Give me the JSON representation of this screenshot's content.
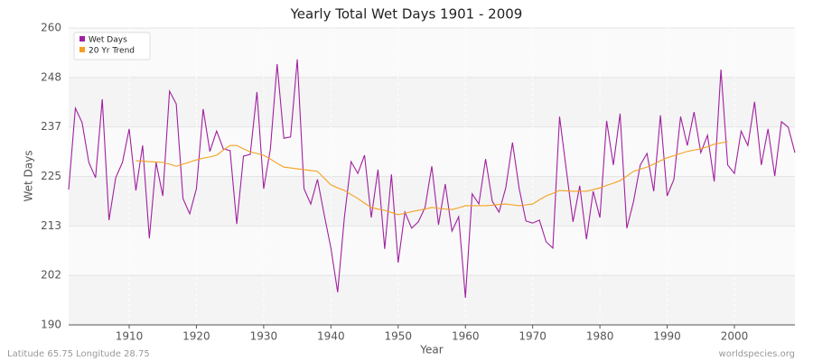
{
  "chart_data": {
    "type": "line",
    "title": "Yearly Total Wet Days 1901 - 2009",
    "xlabel": "Year",
    "ylabel": "Wet Days",
    "footer_left": "Latitude 65.75 Longitude 28.75",
    "footer_right": "worldspecies.org",
    "legend": "upper left",
    "grid": true,
    "xlim": [
      1901,
      2009
    ],
    "xticks": [
      1910,
      1920,
      1930,
      1940,
      1950,
      1960,
      1970,
      1980,
      1990,
      2000
    ],
    "ylim": [
      190,
      260
    ],
    "yticks": [
      190,
      {
        "value": 201.67,
        "label": "202"
      },
      {
        "value": 213.33,
        "label": "213"
      },
      225,
      {
        "value": 236.67,
        "label": "237"
      },
      {
        "value": 248.33,
        "label": "248"
      },
      260
    ],
    "x": [
      1901,
      1902,
      1903,
      1904,
      1905,
      1906,
      1907,
      1908,
      1909,
      1910,
      1911,
      1912,
      1913,
      1914,
      1915,
      1916,
      1917,
      1918,
      1919,
      1920,
      1921,
      1922,
      1923,
      1924,
      1925,
      1926,
      1927,
      1928,
      1929,
      1930,
      1931,
      1932,
      1933,
      1934,
      1935,
      1936,
      1937,
      1938,
      1939,
      1940,
      1941,
      1942,
      1943,
      1944,
      1945,
      1946,
      1947,
      1948,
      1949,
      1950,
      1951,
      1952,
      1953,
      1954,
      1955,
      1956,
      1957,
      1958,
      1959,
      1960,
      1961,
      1962,
      1963,
      1964,
      1965,
      1966,
      1967,
      1968,
      1969,
      1970,
      1971,
      1972,
      1973,
      1974,
      1975,
      1976,
      1977,
      1978,
      1979,
      1980,
      1981,
      1982,
      1983,
      1984,
      1985,
      1986,
      1987,
      1988,
      1989,
      1990,
      1991,
      1992,
      1993,
      1994,
      1995,
      1996,
      1997,
      1998,
      1999,
      2000,
      2001,
      2002,
      2003,
      2004,
      2005,
      2006,
      2007,
      2008,
      2009
    ],
    "series": [
      {
        "name": "Wet Days",
        "color": "#a020a0",
        "values": [
          221.9,
          241.1,
          237.7,
          228.3,
          224.7,
          243.2,
          214.7,
          224.7,
          228.3,
          236.2,
          221.7,
          232.3,
          210.4,
          228.3,
          220.4,
          245.1,
          242.1,
          219.8,
          216.2,
          222.1,
          240.9,
          230.9,
          235.7,
          231.5,
          231.1,
          213.8,
          229.8,
          230.2,
          244.9,
          222.1,
          231.5,
          251.5,
          234.0,
          234.3,
          252.6,
          222.1,
          218.5,
          224.3,
          216.0,
          208.1,
          197.7,
          215.3,
          228.5,
          225.7,
          230.0,
          215.3,
          226.6,
          207.9,
          225.5,
          204.7,
          216.6,
          212.8,
          214.3,
          217.7,
          227.4,
          213.6,
          223.2,
          212.1,
          215.5,
          196.4,
          220.9,
          218.5,
          229.1,
          219.1,
          216.6,
          222.3,
          233.0,
          222.1,
          214.5,
          214.0,
          214.7,
          209.6,
          208.1,
          239.1,
          226.6,
          214.3,
          222.8,
          210.2,
          221.5,
          215.3,
          238.1,
          227.7,
          239.8,
          212.8,
          219.1,
          227.7,
          230.4,
          221.5,
          239.4,
          220.4,
          224.3,
          239.1,
          232.3,
          240.2,
          230.6,
          234.7,
          223.8,
          250.2,
          227.7,
          225.7,
          235.7,
          232.3,
          242.6,
          227.7,
          236.2,
          225.1,
          237.9,
          236.6,
          230.6
        ]
      },
      {
        "name": "20 Yr Trend",
        "color": "#f5a020",
        "values": [
          null,
          null,
          null,
          null,
          null,
          null,
          null,
          null,
          null,
          null,
          228.7,
          228.6,
          228.5,
          228.4,
          228.3,
          227.9,
          227.4,
          227.9,
          228.4,
          228.9,
          229.3,
          229.6,
          230.0,
          231.2,
          232.3,
          232.3,
          231.5,
          230.8,
          230.4,
          230.0,
          229.1,
          228.1,
          227.2,
          227.0,
          226.8,
          226.6,
          226.4,
          226.2,
          224.6,
          223.0,
          222.3,
          221.7,
          220.7,
          219.8,
          218.7,
          217.7,
          217.3,
          217.0,
          216.5,
          216.0,
          216.3,
          216.7,
          217.0,
          217.3,
          217.7,
          217.5,
          217.3,
          217.2,
          217.6,
          218.1,
          218.1,
          218.1,
          218.1,
          218.2,
          218.4,
          218.5,
          218.3,
          218.1,
          218.3,
          218.5,
          219.5,
          220.4,
          221.0,
          221.7,
          221.6,
          221.5,
          221.5,
          221.5,
          221.9,
          222.3,
          222.9,
          223.4,
          224.0,
          225.1,
          226.2,
          226.7,
          227.2,
          227.9,
          228.7,
          229.4,
          229.9,
          230.4,
          230.9,
          231.2,
          231.5,
          232.0,
          232.6,
          232.9,
          233.2,
          null,
          null,
          null,
          null,
          null,
          null,
          null,
          null,
          null,
          null
        ]
      }
    ]
  }
}
